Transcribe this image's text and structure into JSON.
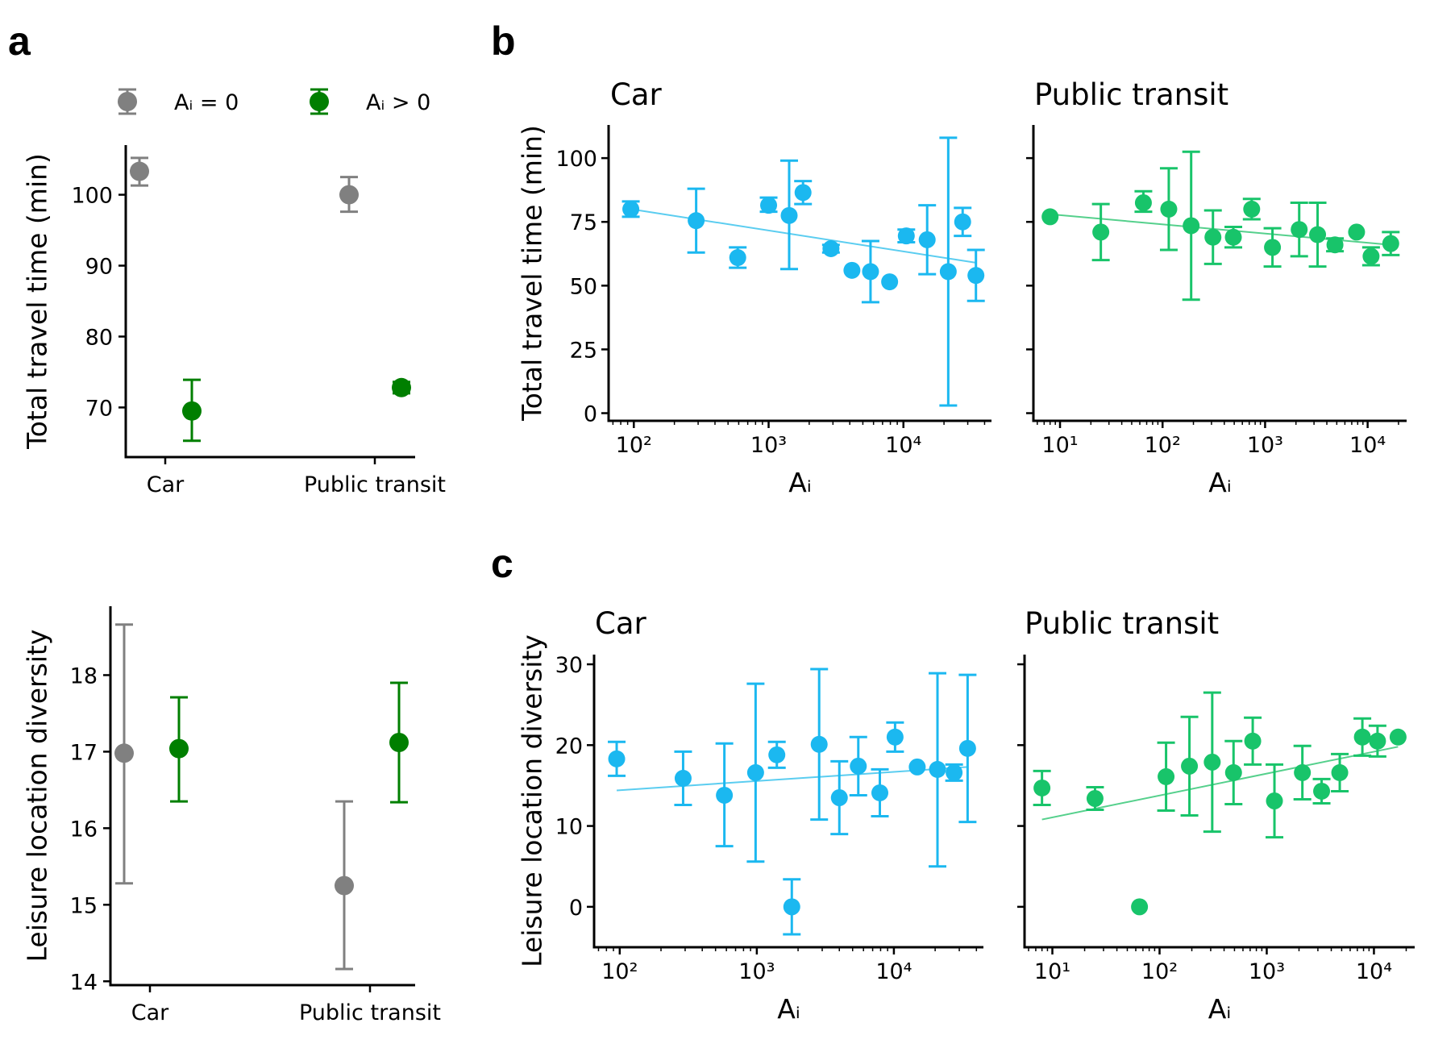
{
  "panel_labels": {
    "a": "a",
    "b": "b",
    "c": "c"
  },
  "legend": {
    "items": [
      {
        "label": "Aᵢ = 0",
        "color": "#808080"
      },
      {
        "label": "Aᵢ > 0",
        "color": "#007f00"
      }
    ]
  },
  "colors": {
    "car": "#1bb8f0",
    "car_fit": "#5bcdf0",
    "transit": "#18c46a",
    "transit_fit": "#55d08c",
    "zero": "#808080",
    "pos": "#007f00"
  },
  "chart_data": [
    {
      "id": "a-travel",
      "type": "scatter",
      "categories": [
        "Car",
        "Public transit"
      ],
      "ylabel": "Total travel time (min)",
      "ylim": [
        63,
        107
      ],
      "yticks": [
        70,
        80,
        90,
        100
      ],
      "series": [
        {
          "key": "zero",
          "values": [
            103.3,
            100.0
          ],
          "err_low": [
            101.3,
            97.6
          ],
          "err_high": [
            105.2,
            102.5
          ]
        },
        {
          "key": "pos",
          "values": [
            69.5,
            72.8
          ],
          "err_low": [
            65.3,
            72.0
          ],
          "err_high": [
            73.9,
            73.6
          ]
        }
      ]
    },
    {
      "id": "a-diversity",
      "type": "scatter",
      "categories": [
        "Car",
        "Public transit"
      ],
      "ylabel": "Leisure location diversity",
      "ylim": [
        13.95,
        18.9
      ],
      "yticks": [
        14,
        15,
        16,
        17,
        18
      ],
      "series": [
        {
          "key": "zero",
          "values": [
            16.98,
            15.25
          ],
          "err_low": [
            15.28,
            14.16
          ],
          "err_high": [
            18.66,
            16.35
          ]
        },
        {
          "key": "pos",
          "values": [
            17.04,
            17.12
          ],
          "err_low": [
            16.35,
            16.34
          ],
          "err_high": [
            17.71,
            17.9
          ]
        }
      ]
    },
    {
      "id": "b-car",
      "type": "scatter",
      "title": "Car",
      "xlabel": "Aᵢ",
      "ylabel": "Total travel time (min)",
      "xscale": "log",
      "xlim": [
        65,
        45000
      ],
      "ylim": [
        -3,
        113
      ],
      "yticks": [
        0,
        25,
        50,
        75,
        100
      ],
      "xticks": [
        100,
        1000,
        10000
      ],
      "xtick_labels": [
        "10²",
        "10³",
        "10⁴"
      ],
      "mode": "car",
      "points": [
        {
          "x": 95,
          "y": 80,
          "lo": 77,
          "hi": 83
        },
        {
          "x": 290,
          "y": 75.5,
          "lo": 63,
          "hi": 88
        },
        {
          "x": 590,
          "y": 61,
          "lo": 57,
          "hi": 65
        },
        {
          "x": 1000,
          "y": 81.5,
          "lo": 79,
          "hi": 84.5
        },
        {
          "x": 1420,
          "y": 77.5,
          "lo": 56.5,
          "hi": 99
        },
        {
          "x": 1800,
          "y": 86.5,
          "lo": 82,
          "hi": 91
        },
        {
          "x": 2900,
          "y": 64.5,
          "lo": 63,
          "hi": 66
        },
        {
          "x": 4150,
          "y": 56
        },
        {
          "x": 5700,
          "y": 55.5,
          "lo": 43.5,
          "hi": 67.5
        },
        {
          "x": 7900,
          "y": 51.5
        },
        {
          "x": 10500,
          "y": 69.5,
          "lo": 67,
          "hi": 72
        },
        {
          "x": 15000,
          "y": 68,
          "lo": 54.5,
          "hi": 81.5
        },
        {
          "x": 21500,
          "y": 55.5,
          "lo": 3,
          "hi": 108
        },
        {
          "x": 27500,
          "y": 75,
          "lo": 69.5,
          "hi": 80.5
        },
        {
          "x": 34500,
          "y": 54,
          "lo": 44,
          "hi": 64
        }
      ],
      "fit": {
        "x": [
          95,
          34500
        ],
        "y": [
          80,
          59
        ]
      }
    },
    {
      "id": "b-transit",
      "type": "scatter",
      "title": "Public transit",
      "xlabel": "Aᵢ",
      "xscale": "log",
      "xlim": [
        5.5,
        24000
      ],
      "ylim": [
        -3,
        113
      ],
      "yticks": [
        0,
        25,
        50,
        75,
        100
      ],
      "xticks": [
        10,
        100,
        1000,
        10000
      ],
      "xtick_labels": [
        "10¹",
        "10²",
        "10³",
        "10⁴"
      ],
      "mode": "transit",
      "points": [
        {
          "x": 8,
          "y": 77
        },
        {
          "x": 25,
          "y": 71,
          "lo": 60,
          "hi": 82
        },
        {
          "x": 65,
          "y": 82.5,
          "lo": 79,
          "hi": 87
        },
        {
          "x": 115,
          "y": 80,
          "lo": 64,
          "hi": 96
        },
        {
          "x": 190,
          "y": 73.5,
          "lo": 44.5,
          "hi": 102.5
        },
        {
          "x": 310,
          "y": 69,
          "lo": 58.5,
          "hi": 79.5
        },
        {
          "x": 490,
          "y": 69,
          "lo": 65,
          "hi": 73
        },
        {
          "x": 740,
          "y": 80,
          "lo": 76,
          "hi": 84
        },
        {
          "x": 1180,
          "y": 65,
          "lo": 57.5,
          "hi": 72.5
        },
        {
          "x": 2150,
          "y": 72,
          "lo": 61.5,
          "hi": 82.5
        },
        {
          "x": 3250,
          "y": 70,
          "lo": 57.5,
          "hi": 82.5
        },
        {
          "x": 4800,
          "y": 66,
          "lo": 63.5,
          "hi": 68.5
        },
        {
          "x": 7800,
          "y": 71
        },
        {
          "x": 10800,
          "y": 61.5,
          "lo": 58,
          "hi": 65
        },
        {
          "x": 16800,
          "y": 66.5,
          "lo": 62,
          "hi": 71
        }
      ],
      "fit": {
        "x": [
          8,
          16800
        ],
        "y": [
          78,
          66
        ]
      }
    },
    {
      "id": "c-car",
      "type": "scatter",
      "title": "Car",
      "xlabel": "Aᵢ",
      "ylabel": "Leisure location diversity",
      "xscale": "log",
      "xlim": [
        65,
        45000
      ],
      "ylim": [
        -5,
        31.2
      ],
      "yticks": [
        0,
        10,
        20,
        30
      ],
      "xticks": [
        100,
        1000,
        10000
      ],
      "xtick_labels": [
        "10²",
        "10³",
        "10⁴"
      ],
      "mode": "car",
      "points": [
        {
          "x": 95,
          "y": 18.3,
          "lo": 16.2,
          "hi": 20.4
        },
        {
          "x": 290,
          "y": 15.9,
          "lo": 12.6,
          "hi": 19.2
        },
        {
          "x": 580,
          "y": 13.8,
          "lo": 7.5,
          "hi": 20.2
        },
        {
          "x": 980,
          "y": 16.6,
          "lo": 5.6,
          "hi": 27.6
        },
        {
          "x": 1400,
          "y": 18.8,
          "lo": 17.2,
          "hi": 20.4
        },
        {
          "x": 1800,
          "y": 0,
          "lo": -3.4,
          "hi": 3.4
        },
        {
          "x": 2850,
          "y": 20.1,
          "lo": 10.8,
          "hi": 29.4
        },
        {
          "x": 4000,
          "y": 13.5,
          "lo": 9.0,
          "hi": 18.0
        },
        {
          "x": 5500,
          "y": 17.4,
          "lo": 13.8,
          "hi": 21.0
        },
        {
          "x": 7900,
          "y": 14.1,
          "lo": 11.2,
          "hi": 17.0
        },
        {
          "x": 10200,
          "y": 21.0,
          "lo": 19.2,
          "hi": 22.8
        },
        {
          "x": 14800,
          "y": 17.3
        },
        {
          "x": 20800,
          "y": 17.0,
          "lo": 5.0,
          "hi": 28.9
        },
        {
          "x": 27500,
          "y": 16.6,
          "lo": 15.6,
          "hi": 17.6
        },
        {
          "x": 34500,
          "y": 19.6,
          "lo": 10.5,
          "hi": 28.7
        }
      ],
      "fit": {
        "x": [
          95,
          34500
        ],
        "y": [
          14.4,
          17.3
        ]
      }
    },
    {
      "id": "c-transit",
      "type": "scatter",
      "title": "Public transit",
      "xlabel": "Aᵢ",
      "xscale": "log",
      "xlim": [
        5.5,
        24000
      ],
      "ylim": [
        -5,
        31.2
      ],
      "yticks": [
        0,
        10,
        20,
        30
      ],
      "xticks": [
        10,
        100,
        1000,
        10000
      ],
      "xtick_labels": [
        "10¹",
        "10²",
        "10³",
        "10⁴"
      ],
      "mode": "transit",
      "points": [
        {
          "x": 8,
          "y": 14.7,
          "lo": 12.6,
          "hi": 16.8
        },
        {
          "x": 25,
          "y": 13.4,
          "lo": 12.0,
          "hi": 14.8
        },
        {
          "x": 65,
          "y": 0
        },
        {
          "x": 115,
          "y": 16.1,
          "lo": 11.9,
          "hi": 20.3
        },
        {
          "x": 190,
          "y": 17.4,
          "lo": 11.3,
          "hi": 23.5
        },
        {
          "x": 310,
          "y": 17.9,
          "lo": 9.3,
          "hi": 26.5
        },
        {
          "x": 490,
          "y": 16.6,
          "lo": 12.7,
          "hi": 20.5
        },
        {
          "x": 740,
          "y": 20.5,
          "lo": 17.6,
          "hi": 23.4
        },
        {
          "x": 1180,
          "y": 13.1,
          "lo": 8.6,
          "hi": 17.6
        },
        {
          "x": 2150,
          "y": 16.6,
          "lo": 13.3,
          "hi": 19.9
        },
        {
          "x": 3250,
          "y": 14.3,
          "lo": 12.8,
          "hi": 15.8
        },
        {
          "x": 4800,
          "y": 16.6,
          "lo": 14.3,
          "hi": 18.9
        },
        {
          "x": 7800,
          "y": 21.0,
          "lo": 18.7,
          "hi": 23.3
        },
        {
          "x": 10800,
          "y": 20.5,
          "lo": 18.6,
          "hi": 22.4
        },
        {
          "x": 16800,
          "y": 21.0
        }
      ],
      "fit": {
        "x": [
          8,
          16800
        ],
        "y": [
          10.8,
          19.8
        ]
      }
    }
  ]
}
